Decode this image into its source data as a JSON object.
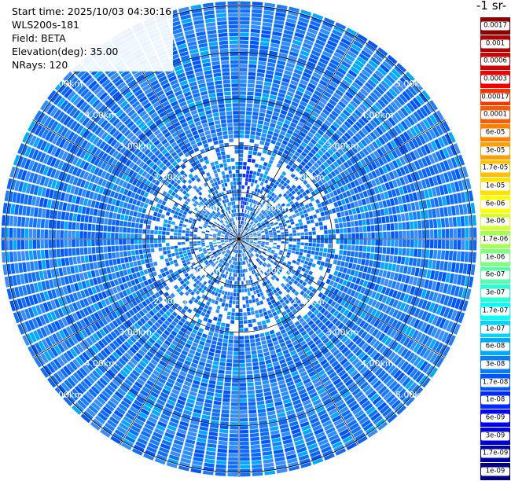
{
  "info": {
    "start_time": "Start time: 2025/10/03 04:30:16",
    "instrument": "WLS200s-181",
    "field": "Field: BETA",
    "elevation": "Elevation(deg): 35.00",
    "nrays": "NRays: 120"
  },
  "colorbar": {
    "title_visible": "-1 sr-",
    "entries": [
      {
        "label": "0.0017",
        "color": "#8b0000"
      },
      {
        "label": "0.001",
        "color": "#b00000"
      },
      {
        "label": "0.0006",
        "color": "#d40000"
      },
      {
        "label": "0.0003",
        "color": "#f00000"
      },
      {
        "label": "0.00017",
        "color": "#ff3300"
      },
      {
        "label": "0.0001",
        "color": "#ff5a00"
      },
      {
        "label": "6e-05",
        "color": "#ff8000"
      },
      {
        "label": "3e-05",
        "color": "#ff9f00"
      },
      {
        "label": "1.7e-05",
        "color": "#ffbf00"
      },
      {
        "label": "1e-05",
        "color": "#ffe000"
      },
      {
        "label": "6e-06",
        "color": "#ffff00"
      },
      {
        "label": "3e-06",
        "color": "#d4ff2a"
      },
      {
        "label": "1.7e-06",
        "color": "#a6ff55"
      },
      {
        "label": "1e-06",
        "color": "#7fff7f"
      },
      {
        "label": "6e-07",
        "color": "#55ffaa"
      },
      {
        "label": "3e-07",
        "color": "#2affd4"
      },
      {
        "label": "1.7e-07",
        "color": "#00ffff"
      },
      {
        "label": "1e-07",
        "color": "#00d4ff"
      },
      {
        "label": "6e-08",
        "color": "#00aaff"
      },
      {
        "label": "3e-08",
        "color": "#0080ff"
      },
      {
        "label": "1.7e-08",
        "color": "#0055ff"
      },
      {
        "label": "1e-08",
        "color": "#002aff"
      },
      {
        "label": "6e-09",
        "color": "#0000ff"
      },
      {
        "label": "3e-09",
        "color": "#0000d4"
      },
      {
        "label": "1.7e-09",
        "color": "#0000aa"
      },
      {
        "label": "1e-09",
        "color": "#000080"
      }
    ]
  },
  "chart_data": {
    "type": "heatmap",
    "projection": "polar PPI",
    "range_rings_km": [
      1,
      2,
      3,
      4,
      5
    ],
    "ring_labels": [
      "1.00km",
      "2.00km",
      "3.00km",
      "4.00km",
      "5.00km"
    ],
    "max_range_km": 5.0,
    "nrays": 120,
    "dominant_value_range": [
      "1e-08",
      "1e-07"
    ],
    "notable_feature": "higher backscatter (~1.7e-08 to 1e-08) narrow plume toward north-northeast within ~1.5 km"
  }
}
